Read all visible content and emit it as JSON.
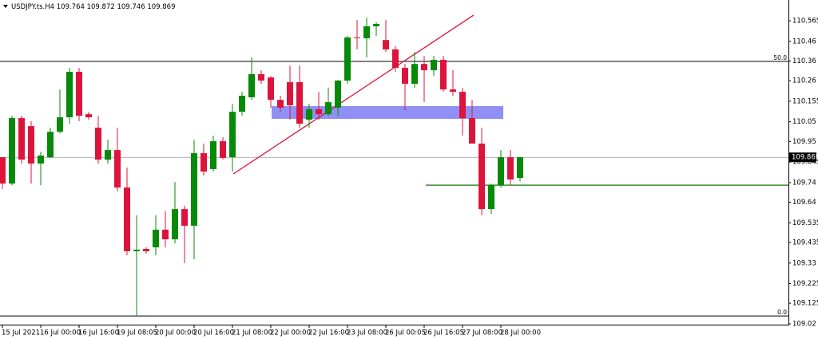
{
  "chart_data": {
    "type": "candlestick",
    "symbol": "USDJPY.ts.H4",
    "up_color": "#078a07",
    "down_color": "#dc143c",
    "categories": [
      "15 Jul 2021",
      null,
      null,
      null,
      "16 Jul 00:00",
      null,
      null,
      null,
      "16 Jul 16:00",
      null,
      null,
      null,
      "19 Jul 08:05",
      null,
      null,
      null,
      "20 Jul 00:00",
      null,
      null,
      null,
      "20 Jul 16:00",
      null,
      null,
      null,
      "21 Jul 08:00",
      null,
      null,
      null,
      "22 Jul 00:00",
      null,
      null,
      null,
      "22 Jul 16:00",
      null,
      null,
      null,
      "23 Jul 08:00",
      null,
      null,
      null,
      "26 Jul 00:05",
      null,
      null,
      null,
      "26 Jul 16:05",
      null,
      null,
      null,
      "27 Jul 08:00",
      null,
      null,
      null,
      "28 Jul 00:00",
      null,
      null
    ],
    "open": [
      109.869,
      109.735,
      110.069,
      110.028,
      109.837,
      109.869,
      109.999,
      110.073,
      110.305,
      110.089,
      110.02,
      109.857,
      109.906,
      109.715,
      109.39,
      109.402,
      109.41,
      109.5,
      109.451,
      109.605,
      109.52,
      109.89,
      109.809,
      109.951,
      109.869,
      110.101,
      110.175,
      110.293,
      110.276,
      110.162,
      110.252,
      110.252,
      110.061,
      110.114,
      110.089,
      110.122,
      110.26,
      110.48,
      110.476,
      110.537,
      110.467,
      110.419,
      110.325,
      110.244,
      110.345,
      110.313,
      110.366,
      110.215,
      110.203,
      110.069,
      109.939,
      109.605,
      109.727,
      109.869,
      109.764
    ],
    "high": [
      109.869,
      110.081,
      110.081,
      110.053,
      109.898,
      110.02,
      110.215,
      110.325,
      110.325,
      110.101,
      110.081,
      109.959,
      110.02,
      109.817,
      109.573,
      109.41,
      109.573,
      109.593,
      109.743,
      109.622,
      109.959,
      109.939,
      109.979,
      109.971,
      110.142,
      110.203,
      110.378,
      110.313,
      110.284,
      110.183,
      110.337,
      110.337,
      110.142,
      110.203,
      110.223,
      110.264,
      110.488,
      110.569,
      110.581,
      110.557,
      110.569,
      110.435,
      110.345,
      110.406,
      110.386,
      110.386,
      110.386,
      110.313,
      110.223,
      110.162,
      110.02,
      109.735,
      109.906,
      109.906,
      109.872
    ],
    "low": [
      109.707,
      109.727,
      109.837,
      109.735,
      109.727,
      109.866,
      109.991,
      110.04,
      110.053,
      110.061,
      109.837,
      109.837,
      109.695,
      109.369,
      109.06,
      109.378,
      109.369,
      109.41,
      109.43,
      109.329,
      109.349,
      109.776,
      109.796,
      109.857,
      109.796,
      110.081,
      110.162,
      110.244,
      110.122,
      110.101,
      110.061,
      110.02,
      110.02,
      110.061,
      110.081,
      110.081,
      110.244,
      110.419,
      110.378,
      110.488,
      110.406,
      110.305,
      110.11,
      110.223,
      110.15,
      110.284,
      110.203,
      110.183,
      109.979,
      109.939,
      109.573,
      109.581,
      109.715,
      109.727,
      109.746
    ],
    "close": [
      109.735,
      110.069,
      109.857,
      109.837,
      109.878,
      109.999,
      110.073,
      110.305,
      110.081,
      110.073,
      109.857,
      109.906,
      109.715,
      109.39,
      109.398,
      109.39,
      109.5,
      109.451,
      109.605,
      109.52,
      109.89,
      109.796,
      109.951,
      109.866,
      110.101,
      110.183,
      110.293,
      110.26,
      110.162,
      110.122,
      110.134,
      110.04,
      110.114,
      110.089,
      110.15,
      110.26,
      110.48,
      110.476,
      110.537,
      110.549,
      110.419,
      110.325,
      110.244,
      110.345,
      110.313,
      110.366,
      110.215,
      110.203,
      110.069,
      109.939,
      109.605,
      109.727,
      109.869,
      109.756,
      109.869
    ],
    "ylim": [
      109.02,
      110.671
    ],
    "yticks": [
      110.565,
      110.46,
      110.36,
      110.26,
      110.155,
      110.05,
      109.95,
      109.845,
      109.74,
      109.64,
      109.535,
      109.435,
      109.33,
      109.225,
      109.125,
      109.02
    ],
    "fibo": [
      {
        "label": "50.0",
        "value": 110.358
      },
      {
        "label": "0.0",
        "value": 109.06
      }
    ],
    "trendline": [
      109.784,
      110.594
    ],
    "zone": [
      110.13,
      110.065
    ],
    "hline": 109.727
  }
}
